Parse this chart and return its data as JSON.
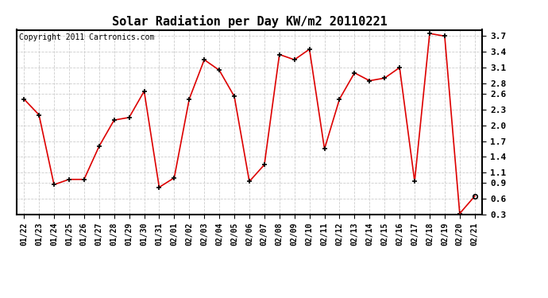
{
  "title": "Solar Radiation per Day KW/m2 20110221",
  "copyright": "Copyright 2011 Cartronics.com",
  "labels": [
    "01/22",
    "01/23",
    "01/24",
    "01/25",
    "01/26",
    "01/27",
    "01/28",
    "01/29",
    "01/30",
    "01/31",
    "02/01",
    "02/02",
    "02/03",
    "02/04",
    "02/05",
    "02/06",
    "02/07",
    "02/08",
    "02/09",
    "02/10",
    "02/11",
    "02/12",
    "02/13",
    "02/14",
    "02/15",
    "02/16",
    "02/17",
    "02/18",
    "02/19",
    "02/20",
    "02/21"
  ],
  "values": [
    2.5,
    2.2,
    0.87,
    0.97,
    0.97,
    1.6,
    2.1,
    2.15,
    2.65,
    0.82,
    1.0,
    2.5,
    3.25,
    3.05,
    2.55,
    0.93,
    1.25,
    3.35,
    3.25,
    3.45,
    1.55,
    2.5,
    3.0,
    2.85,
    2.9,
    3.1,
    0.93,
    3.75,
    3.7,
    0.32,
    0.65
  ],
  "line_color": "#dd0000",
  "marker_color": "#000000",
  "bg_color": "#ffffff",
  "plot_bg_color": "#ffffff",
  "grid_color": "#cccccc",
  "ylim_min": 0.3,
  "ylim_max": 3.82,
  "yticks": [
    0.3,
    0.6,
    0.9,
    1.1,
    1.4,
    1.7,
    2.0,
    2.3,
    2.6,
    2.8,
    3.1,
    3.4,
    3.7
  ],
  "title_fontsize": 11,
  "copyright_fontsize": 7,
  "tick_fontsize": 7
}
